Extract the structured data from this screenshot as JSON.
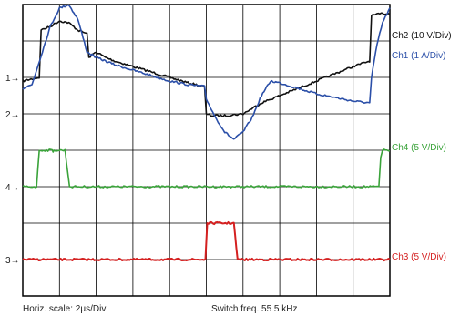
{
  "chart_data": {
    "type": "line",
    "title": "",
    "grid": {
      "divisions_x": 10,
      "divisions_y": 8
    },
    "x": {
      "unit": "us",
      "per_division": 2,
      "range": [
        0,
        20
      ]
    },
    "y": {
      "unit": "div",
      "range": [
        0,
        8
      ]
    },
    "series": [
      {
        "name": "Ch2 (10 V/Div)",
        "color": "#111111",
        "ground_div": 6.0,
        "points": [
          [
            0,
            5.9
          ],
          [
            0.9,
            6.0
          ],
          [
            1.0,
            7.3
          ],
          [
            1.5,
            7.4
          ],
          [
            2.0,
            7.55
          ],
          [
            2.5,
            7.5
          ],
          [
            3.0,
            7.3
          ],
          [
            3.5,
            7.2
          ],
          [
            3.6,
            6.55
          ],
          [
            4.0,
            6.7
          ],
          [
            4.5,
            6.55
          ],
          [
            5.0,
            6.45
          ],
          [
            6.0,
            6.3
          ],
          [
            7.0,
            6.15
          ],
          [
            8.0,
            6.0
          ],
          [
            9.0,
            5.85
          ],
          [
            9.9,
            5.75
          ],
          [
            10.0,
            5.0
          ],
          [
            10.3,
            4.95
          ],
          [
            11.0,
            4.95
          ],
          [
            12.0,
            5.0
          ],
          [
            13.0,
            5.3
          ],
          [
            14.0,
            5.5
          ],
          [
            15.0,
            5.7
          ],
          [
            16.0,
            5.9
          ],
          [
            17.0,
            6.1
          ],
          [
            18.0,
            6.3
          ],
          [
            18.9,
            6.45
          ],
          [
            19.0,
            7.7
          ],
          [
            19.6,
            7.75
          ],
          [
            20.0,
            7.75
          ]
        ]
      },
      {
        "name": "Ch1 (1 A/Div)",
        "color": "#2b4fa8",
        "ground_div": 6.0,
        "points": [
          [
            0,
            5.7
          ],
          [
            0.5,
            5.8
          ],
          [
            1.0,
            6.6
          ],
          [
            1.5,
            7.4
          ],
          [
            2.0,
            7.9
          ],
          [
            2.5,
            8.0
          ],
          [
            3.0,
            7.6
          ],
          [
            3.5,
            6.7
          ],
          [
            4.0,
            6.55
          ],
          [
            4.5,
            6.45
          ],
          [
            5.0,
            6.35
          ],
          [
            6.0,
            6.2
          ],
          [
            7.0,
            6.05
          ],
          [
            8.0,
            5.9
          ],
          [
            9.0,
            5.8
          ],
          [
            9.9,
            5.75
          ],
          [
            10.0,
            5.4
          ],
          [
            10.5,
            4.9
          ],
          [
            11.0,
            4.5
          ],
          [
            11.5,
            4.3
          ],
          [
            12.0,
            4.5
          ],
          [
            12.5,
            4.9
          ],
          [
            13.0,
            5.5
          ],
          [
            13.5,
            5.9
          ],
          [
            14.0,
            5.85
          ],
          [
            15.0,
            5.7
          ],
          [
            16.0,
            5.55
          ],
          [
            17.0,
            5.45
          ],
          [
            18.0,
            5.35
          ],
          [
            18.9,
            5.3
          ],
          [
            19.0,
            6.0
          ],
          [
            19.3,
            6.9
          ],
          [
            19.6,
            7.5
          ],
          [
            20.0,
            7.9
          ]
        ]
      },
      {
        "name": "Ch4 (5 V/Div)",
        "color": "#3aa33a",
        "ground_div": 3.0,
        "points": [
          [
            0,
            3.0
          ],
          [
            0.75,
            3.0
          ],
          [
            0.9,
            4.0
          ],
          [
            1.6,
            4.0
          ],
          [
            1.65,
            3.95
          ],
          [
            1.7,
            4.0
          ],
          [
            2.3,
            4.0
          ],
          [
            2.45,
            3.4
          ],
          [
            2.55,
            3.0
          ],
          [
            19.4,
            3.0
          ],
          [
            19.5,
            3.8
          ],
          [
            19.6,
            4.0
          ],
          [
            20.0,
            4.0
          ]
        ]
      },
      {
        "name": "Ch3 (5 V/Div)",
        "color": "#d42020",
        "ground_div": 1.0,
        "points": [
          [
            0,
            1.0
          ],
          [
            9.95,
            1.0
          ],
          [
            10.05,
            2.0
          ],
          [
            11.5,
            2.0
          ],
          [
            11.7,
            1.0
          ],
          [
            20.0,
            1.0
          ]
        ]
      }
    ],
    "markers": [
      {
        "label": "1",
        "y_div": 6.0
      },
      {
        "label": "2",
        "y_div": 5.0
      },
      {
        "label": "4",
        "y_div": 3.0
      },
      {
        "label": "3",
        "y_div": 1.0
      }
    ],
    "legend": [
      {
        "label": "Ch2 (10 V/Div)",
        "color": "#111111"
      },
      {
        "label": "Ch1 (1 A/Div)",
        "color": "#2b4fa8"
      },
      {
        "label": "Ch4 (5 V/Div)",
        "color": "#3aa33a"
      },
      {
        "label": "Ch3 (5 V/Div)",
        "color": "#d42020"
      }
    ],
    "footer": {
      "horiz_scale": "Horiz. scale: 2μs/Div",
      "switch_freq": "Switch freq. 55 5 kHz"
    }
  }
}
